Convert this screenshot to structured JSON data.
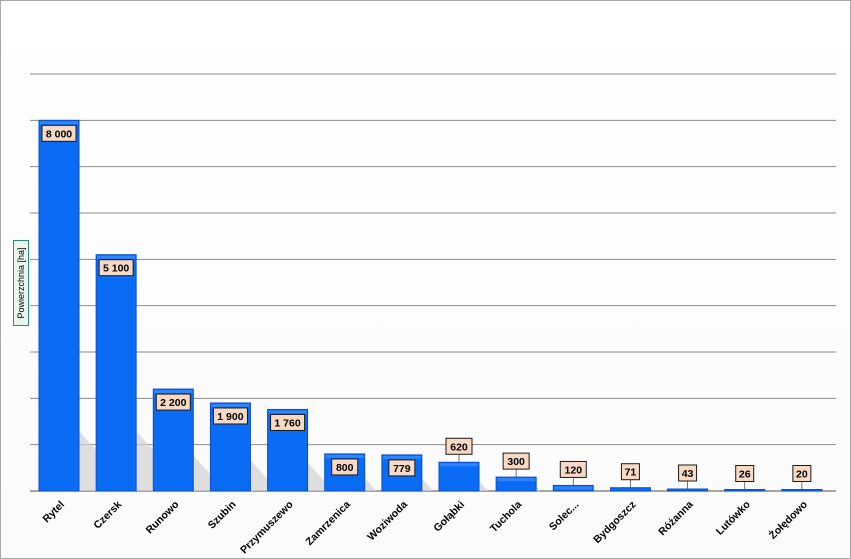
{
  "chart_data": {
    "type": "bar",
    "title": "",
    "xlabel": "",
    "ylabel": "Powierzchnia [ha]",
    "categories": [
      "Rytel",
      "Czersk",
      "Runowo",
      "Szubin",
      "Przymuszewo",
      "Zamrzenica",
      "Woziwoda",
      "Gołąbki",
      "Tuchola",
      "Solec...",
      "Bydgoszcz",
      "Różanna",
      "Lutówko",
      "Żołędowo"
    ],
    "values": [
      8000,
      5100,
      2200,
      1900,
      1760,
      800,
      779,
      620,
      300,
      120,
      71,
      43,
      26,
      20
    ],
    "data_labels": [
      "8 000",
      "5 100",
      "2 200",
      "1 900",
      "1 760",
      "800",
      "779",
      "620",
      "300",
      "120",
      "71",
      "43",
      "26",
      "20"
    ],
    "ylim": [
      0,
      9000
    ],
    "grid": true,
    "legend": "none",
    "colors": {
      "bar": "#0a6cf5",
      "bar_edge": "#0a4fc8",
      "gridline": "#8c8c8c",
      "label_bg": "#f7d9c4",
      "label_border": "#1a1a1a",
      "shadow": "#d2d2d2"
    }
  }
}
